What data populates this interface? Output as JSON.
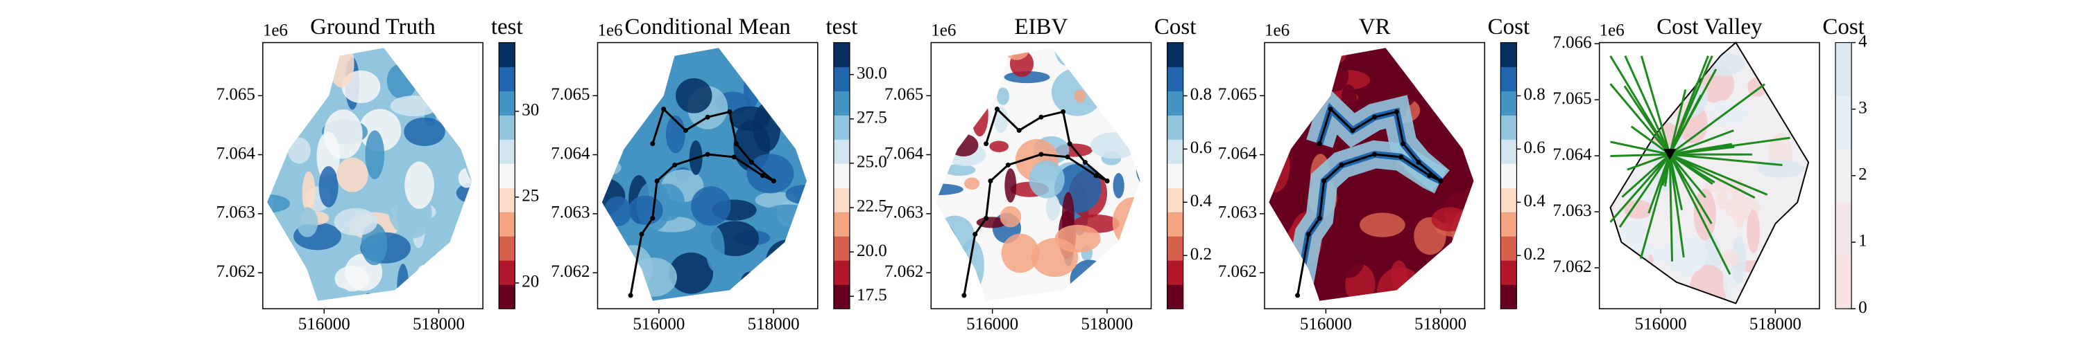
{
  "chart_data": [
    {
      "type": "heatmap",
      "title": "Ground Truth",
      "colorbar_label": "test",
      "y_offset_label": "1e6",
      "xlim": [
        514930,
        518770
      ],
      "xticks": [
        516000,
        518000
      ],
      "ylim": [
        7061390,
        7065900
      ],
      "yticks": [
        {
          "value": 7062000,
          "label": "7.062"
        },
        {
          "value": 7063000,
          "label": "7.063"
        },
        {
          "value": 7064000,
          "label": "7.064"
        },
        {
          "value": 7065000,
          "label": "7.065"
        }
      ],
      "clim": [
        18.5,
        34
      ],
      "cticks": [
        20,
        25,
        30
      ],
      "colors": [
        "#67001f",
        "#b2182b",
        "#d6604d",
        "#f4a582",
        "#fddbc7",
        "#f7f7f7",
        "#d1e5f0",
        "#92c5de",
        "#4393c3",
        "#2166ac",
        "#053061"
      ]
    },
    {
      "type": "heatmap",
      "title": "Conditional Mean",
      "colorbar_label": "test",
      "y_offset_label": "1e6",
      "xlim": [
        514930,
        518770
      ],
      "xticks": [
        516000,
        518000
      ],
      "ylim": [
        7061390,
        7065900
      ],
      "yticks": [
        {
          "value": 7062000,
          "label": "7.062"
        },
        {
          "value": 7063000,
          "label": "7.063"
        },
        {
          "value": 7064000,
          "label": "7.064"
        },
        {
          "value": 7065000,
          "label": "7.065"
        }
      ],
      "clim": [
        16.8,
        31.8
      ],
      "cticks": [
        17.5,
        {
          "value": 20,
          "label": "20.0"
        },
        22.5,
        {
          "value": 25,
          "label": "25.0"
        },
        27.5,
        {
          "value": 30,
          "label": "30.0"
        }
      ],
      "colors": [
        "#67001f",
        "#b2182b",
        "#d6604d",
        "#f4a582",
        "#fddbc7",
        "#f7f7f7",
        "#d1e5f0",
        "#92c5de",
        "#4393c3",
        "#2166ac",
        "#053061"
      ]
    },
    {
      "type": "heatmap",
      "title": "EIBV",
      "colorbar_label": "Cost",
      "y_offset_label": "1e6",
      "xlim": [
        514930,
        518770
      ],
      "xticks": [
        516000,
        518000
      ],
      "ylim": [
        7061390,
        7065900
      ],
      "yticks": [
        {
          "value": 7062000,
          "label": "7.062"
        },
        {
          "value": 7063000,
          "label": "7.063"
        },
        {
          "value": 7064000,
          "label": "7.064"
        },
        {
          "value": 7065000,
          "label": "7.065"
        }
      ],
      "clim": [
        0,
        1
      ],
      "cticks": [
        0.2,
        0.4,
        0.6,
        0.8
      ],
      "colors": [
        "#67001f",
        "#b2182b",
        "#d6604d",
        "#f4a582",
        "#fddbc7",
        "#f7f7f7",
        "#d1e5f0",
        "#92c5de",
        "#4393c3",
        "#2166ac",
        "#053061"
      ]
    },
    {
      "type": "heatmap",
      "title": "VR",
      "colorbar_label": "Cost",
      "y_offset_label": "1e6",
      "xlim": [
        514930,
        518770
      ],
      "xticks": [
        516000,
        518000
      ],
      "ylim": [
        7061390,
        7065900
      ],
      "yticks": [
        {
          "value": 7062000,
          "label": "7.062"
        },
        {
          "value": 7063000,
          "label": "7.063"
        },
        {
          "value": 7064000,
          "label": "7.064"
        },
        {
          "value": 7065000,
          "label": "7.065"
        }
      ],
      "clim": [
        0,
        1
      ],
      "cticks": [
        0.2,
        0.4,
        0.6,
        0.8
      ],
      "colors": [
        "#67001f",
        "#b2182b",
        "#d6604d",
        "#f4a582",
        "#fddbc7",
        "#f7f7f7",
        "#d1e5f0",
        "#92c5de",
        "#4393c3",
        "#2166ac",
        "#053061"
      ]
    },
    {
      "type": "heatmap",
      "title": "Cost Valley",
      "colorbar_label": "Cost",
      "y_offset_label": "1e6",
      "xlim": [
        514930,
        518770
      ],
      "xticks": [
        516000,
        518000
      ],
      "ylim": [
        7061270,
        7066020
      ],
      "yticks": [
        {
          "value": 7062000,
          "label": "7.062"
        },
        {
          "value": 7063000,
          "label": "7.063"
        },
        {
          "value": 7064000,
          "label": "7.064"
        },
        {
          "value": 7065000,
          "label": "7.065"
        },
        {
          "value": 7066000,
          "label": "7.066"
        }
      ],
      "clim": [
        0,
        4
      ],
      "cticks": [
        0,
        1,
        2,
        3,
        4
      ],
      "colors": [
        "#f7e1e1",
        "#f4e6e8",
        "#f1eef2",
        "#e6eef6",
        "#dbe7f1"
      ]
    }
  ]
}
